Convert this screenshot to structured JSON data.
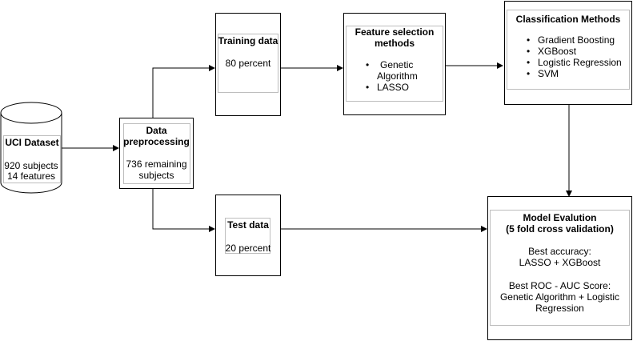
{
  "dataset": {
    "title": "UCI Dataset",
    "line1": "920 subjects",
    "line2": "14 features"
  },
  "preprocessing": {
    "title_line1": "Data",
    "title_line2": "preprocessing",
    "line1": "736 remaining",
    "line2": "subjects"
  },
  "training": {
    "title": "Training data",
    "value": "80 percent"
  },
  "test": {
    "title": "Test data",
    "value": "20 percent"
  },
  "feature_selection": {
    "title_line1": "Feature selection",
    "title_line2": "methods",
    "items": [
      {
        "line1": "Genetic",
        "line2": "Algorithm"
      },
      {
        "line1": "LASSO"
      }
    ]
  },
  "classification": {
    "title": "Classification Methods",
    "items": [
      "Gradient Boosting",
      "XGBoost",
      "Logistic Regression",
      "SVM"
    ]
  },
  "evaluation": {
    "title_line1": "Model Evalution",
    "title_line2": "(5 fold cross validation)",
    "acc_label": "Best accuracy:",
    "acc_value": "LASSO + XGBoost",
    "roc_label": "Best ROC - AUC Score:",
    "roc_line1": "Genetic Algorithm + Logistic",
    "roc_line2": "Regression"
  }
}
